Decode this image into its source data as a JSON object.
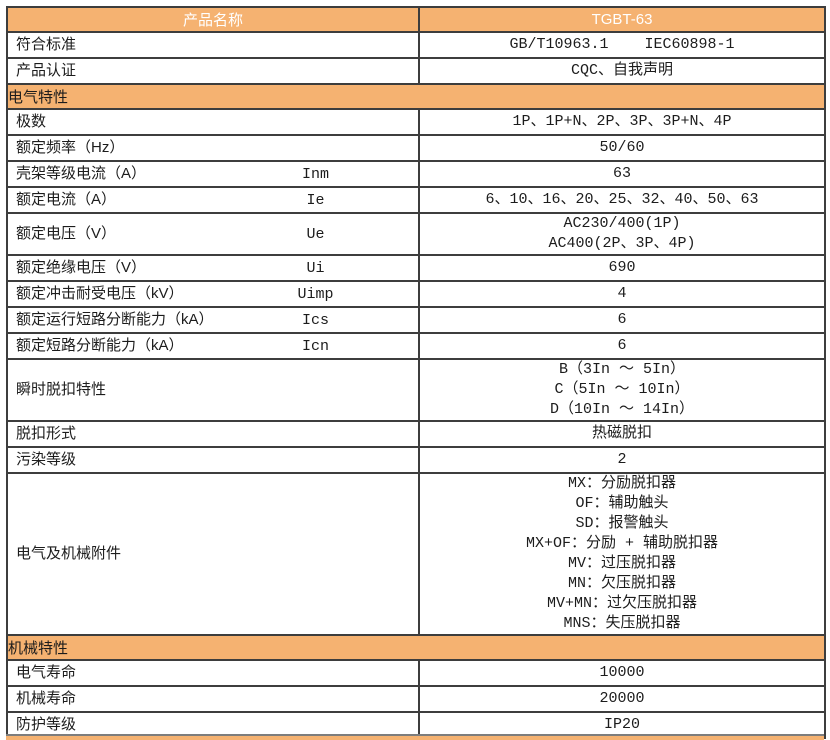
{
  "page": {
    "background_color": "#ffffff"
  },
  "table": {
    "accent_color": "#F5B271",
    "header_text_color": "#ffffff",
    "border_color": "#3d3d3d",
    "rows": [
      {
        "kind": "title",
        "label": "产品名称",
        "value": "TGBT-63"
      },
      {
        "kind": "data",
        "label": "符合标准",
        "symbol": "",
        "values": [
          "GB/T10963.1    IEC60898-1"
        ]
      },
      {
        "kind": "data",
        "label": "产品认证",
        "symbol": "",
        "values": [
          "CQC、自我声明"
        ]
      },
      {
        "kind": "section",
        "label": "电气特性"
      },
      {
        "kind": "data",
        "label": "极数",
        "symbol": "",
        "values": [
          "1P、1P+N、2P、3P、3P+N、4P"
        ]
      },
      {
        "kind": "data",
        "label": "额定频率（Hz）",
        "symbol": "",
        "values": [
          "50/60"
        ]
      },
      {
        "kind": "data",
        "label": "壳架等级电流（A）",
        "symbol": "Inm",
        "values": [
          "63"
        ]
      },
      {
        "kind": "data",
        "label": "额定电流（A）",
        "symbol": "Ie",
        "values": [
          "6、10、16、20、25、32、40、50、63"
        ]
      },
      {
        "kind": "data",
        "label": "额定电压（V）",
        "symbol": "Ue",
        "values": [
          "AC230/400(1P)",
          "AC400(2P、3P、4P)"
        ]
      },
      {
        "kind": "data",
        "label": "额定绝缘电压（V）",
        "symbol": "Ui",
        "values": [
          "690"
        ]
      },
      {
        "kind": "data",
        "label": "额定冲击耐受电压（kV）",
        "symbol": "Uimp",
        "values": [
          "4"
        ]
      },
      {
        "kind": "data",
        "label": "额定运行短路分断能力（kA）",
        "symbol": "Ics",
        "values": [
          "6"
        ]
      },
      {
        "kind": "data",
        "label": "额定短路分断能力（kA）",
        "symbol": "Icn",
        "values": [
          "6"
        ]
      },
      {
        "kind": "data",
        "label": "瞬时脱扣特性",
        "symbol": "",
        "values": [
          "B（3In ～ 5In）",
          "C（5In ～ 10In）",
          "D（10In ～ 14In）"
        ]
      },
      {
        "kind": "data",
        "label": "脱扣形式",
        "symbol": "",
        "values": [
          "热磁脱扣"
        ]
      },
      {
        "kind": "data",
        "label": "污染等级",
        "symbol": "",
        "values": [
          "2"
        ]
      },
      {
        "kind": "data",
        "label": "电气及机械附件",
        "symbol": "",
        "values": [
          "MX：分励脱扣器",
          "OF：辅助触头",
          "SD：报警触头",
          "MX+OF：分励 + 辅助脱扣器",
          "MV：过压脱扣器",
          "MN：欠压脱扣器",
          "MV+MN：过欠压脱扣器",
          "MNS：失压脱扣器"
        ]
      },
      {
        "kind": "section",
        "label": "机械特性"
      },
      {
        "kind": "data",
        "label": "电气寿命",
        "symbol": "",
        "values": [
          "10000"
        ]
      },
      {
        "kind": "data",
        "label": "机械寿命",
        "symbol": "",
        "values": [
          "20000"
        ]
      },
      {
        "kind": "data",
        "label": "防护等级",
        "symbol": "",
        "values": [
          "IP20"
        ]
      }
    ]
  }
}
